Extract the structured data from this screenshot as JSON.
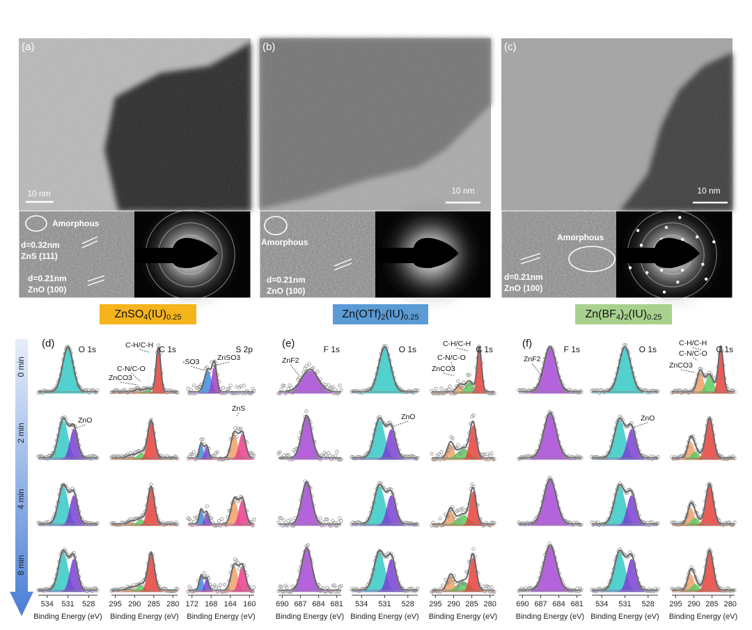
{
  "tem_panels": [
    {
      "label": "(a)",
      "scale_bar": "10 nm",
      "inset_labels": [
        "Amorphous",
        "d=0.32nm",
        "ZnS (111)",
        "d=0.21nm",
        "ZnO (100)"
      ]
    },
    {
      "label": "(b)",
      "scale_bar": "10 nm",
      "inset_labels": [
        "Amorphous",
        "d=0.21nm",
        "ZnO (100)"
      ]
    },
    {
      "label": "(c)",
      "scale_bar": "10 nm",
      "inset_labels": [
        "Amorphous",
        "d=0.21nm",
        "ZnO (100)"
      ]
    }
  ],
  "compounds": [
    {
      "parts": [
        "ZnSO",
        "4",
        "(IU)",
        "0.25"
      ]
    },
    {
      "parts": [
        "Zn(OTf)",
        "2",
        "(IU)",
        "0.25"
      ]
    },
    {
      "parts": [
        "Zn(BF",
        "4",
        ")",
        "2",
        "(IU)",
        "0.25"
      ]
    }
  ],
  "xps": {
    "times": [
      "0 min",
      "2 min",
      "4 min",
      "8 min"
    ],
    "x_axis_label": "Binding Energy (eV)",
    "panels": [
      {
        "label": "(d)",
        "columns": [
          {
            "title": "O 1s",
            "ticks": [
              "534",
              "531",
              "528"
            ],
            "annotations": [
              {
                "text": "ZnO"
              }
            ]
          },
          {
            "title": "C 1s",
            "ticks": [
              "295",
              "290",
              "285",
              "280"
            ],
            "annotations": [
              {
                "text": "C-H/C-H"
              },
              {
                "text": "C-N/C-O"
              },
              {
                "text": "ZnCO3"
              }
            ]
          },
          {
            "title": "S 2p",
            "ticks": [
              "172",
              "168",
              "164",
              "160"
            ],
            "annotations": [
              {
                "text": "-SO3"
              },
              {
                "text": "ZnSO3"
              },
              {
                "text": "ZnS"
              }
            ]
          }
        ]
      },
      {
        "label": "(e)",
        "columns": [
          {
            "title": "F 1s",
            "ticks": [
              "690",
              "687",
              "684",
              "681"
            ],
            "annotations": [
              {
                "text": "ZnF2"
              }
            ]
          },
          {
            "title": "O 1s",
            "ticks": [
              "534",
              "531",
              "528"
            ],
            "annotations": [
              {
                "text": "ZnO"
              }
            ]
          },
          {
            "title": "C 1s",
            "ticks": [
              "295",
              "290",
              "285",
              "280"
            ],
            "annotations": [
              {
                "text": "C-H/C-H"
              },
              {
                "text": "C-N/C-O"
              },
              {
                "text": "ZnCO3"
              }
            ]
          }
        ]
      },
      {
        "label": "(f)",
        "columns": [
          {
            "title": "F 1s",
            "ticks": [
              "690",
              "687",
              "684",
              "681"
            ],
            "annotations": [
              {
                "text": "ZnF2"
              }
            ]
          },
          {
            "title": "O 1s",
            "ticks": [
              "534",
              "531",
              "528"
            ],
            "annotations": [
              {
                "text": "ZnO"
              }
            ]
          },
          {
            "title": "C 1s",
            "ticks": [
              "295",
              "290",
              "285",
              "280"
            ],
            "annotations": [
              {
                "text": "C-H/C-H"
              },
              {
                "text": "C-N/C-O"
              },
              {
                "text": "ZnCO3"
              }
            ]
          }
        ]
      }
    ]
  }
}
